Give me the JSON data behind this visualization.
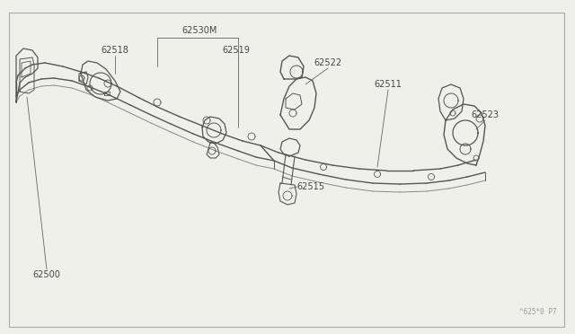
{
  "bg": "#f0f0eb",
  "lc": "#555555",
  "lc2": "#888888",
  "fig_w": 6.4,
  "fig_h": 3.72,
  "watermark": "^625*0 P7",
  "label_fs": 7.0,
  "label_color": "#444444"
}
